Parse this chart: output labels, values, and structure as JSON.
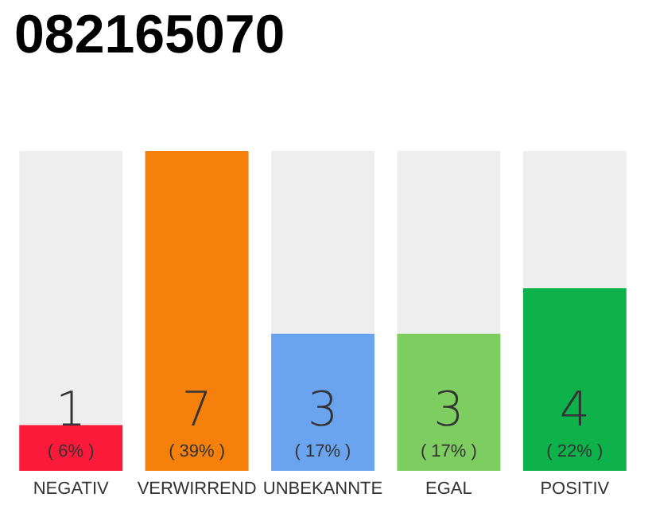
{
  "chart_data": {
    "type": "bar",
    "title": "082165070",
    "categories": [
      "NEGATIV",
      "VERWIRREND",
      "UNBEKANNTE",
      "EGAL",
      "POSITIV"
    ],
    "values": [
      1,
      7,
      3,
      3,
      4
    ],
    "colors": [
      "#fc1a3a",
      "#f5800c",
      "#6aa3ee",
      "#7dcd60",
      "#0db34a"
    ],
    "data_labels": true,
    "annotations": [
      "( 6% )",
      "( 39% )",
      "( 17% )",
      "( 17% )",
      "( 22% )"
    ]
  }
}
